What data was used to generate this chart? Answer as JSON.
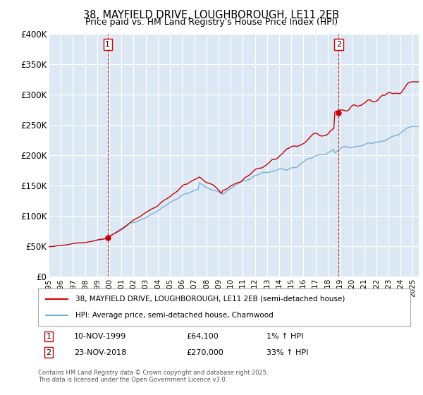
{
  "title_line1": "38, MAYFIELD DRIVE, LOUGHBOROUGH, LE11 2EB",
  "title_line2": "Price paid vs. HM Land Registry's House Price Index (HPI)",
  "legend_line1": "38, MAYFIELD DRIVE, LOUGHBOROUGH, LE11 2EB (semi-detached house)",
  "legend_line2": "HPI: Average price, semi-detached house, Charnwood",
  "footer": "Contains HM Land Registry data © Crown copyright and database right 2025.\nThis data is licensed under the Open Government Licence v3.0.",
  "annotation1_date": "10-NOV-1999",
  "annotation1_price": "£64,100",
  "annotation1_hpi": "1% ↑ HPI",
  "annotation2_date": "23-NOV-2018",
  "annotation2_price": "£270,000",
  "annotation2_hpi": "33% ↑ HPI",
  "red_color": "#cc0000",
  "blue_color": "#7aafd4",
  "plot_bg": "#dce9f5",
  "grid_color": "#ffffff",
  "marker1_x": 1999.87,
  "marker1_y": 64100,
  "marker2_x": 2018.9,
  "marker2_y": 270000,
  "vline1_x": 1999.87,
  "vline2_x": 2018.9,
  "ylim_min": 0,
  "ylim_max": 400000,
  "xlim_min": 1995,
  "xlim_max": 2025.5,
  "yticks": [
    0,
    50000,
    100000,
    150000,
    200000,
    250000,
    300000,
    350000,
    400000
  ],
  "ytick_labels": [
    "£0",
    "£50K",
    "£100K",
    "£150K",
    "£200K",
    "£250K",
    "£300K",
    "£350K",
    "£400K"
  ]
}
